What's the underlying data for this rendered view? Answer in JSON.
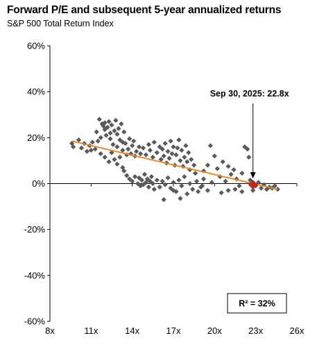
{
  "chart_data": {
    "type": "scatter",
    "title": "Forward P/E and subsequent 5-year annualized returns",
    "subtitle": "S&P 500 Total Return Index",
    "xlabel": "",
    "ylabel": "",
    "xlim": [
      8,
      26
    ],
    "ylim": [
      -60,
      60
    ],
    "x_ticks": [
      8,
      11,
      14,
      17,
      20,
      23,
      26
    ],
    "x_tick_labels": [
      "8x",
      "11x",
      "14x",
      "17x",
      "20x",
      "23x",
      "26x"
    ],
    "y_ticks": [
      60,
      40,
      20,
      0,
      -20,
      -40,
      -60
    ],
    "y_tick_labels": [
      "60%",
      "40%",
      "20%",
      "0%",
      "-20%",
      "-40%",
      "-60%"
    ],
    "grid": false,
    "colors": {
      "points": "#595959",
      "trend": "#E8892B",
      "current": "#C0281E"
    },
    "series": [
      {
        "points": [
          [
            9.6,
            17.5
          ],
          [
            9.7,
            16.0
          ],
          [
            10.1,
            19.0
          ],
          [
            10.3,
            15.5
          ],
          [
            10.5,
            17.5
          ],
          [
            10.7,
            14.0
          ],
          [
            10.9,
            16.5
          ],
          [
            11.0,
            14.5
          ],
          [
            11.1,
            18.0
          ],
          [
            11.3,
            15.0
          ],
          [
            11.4,
            22.5
          ],
          [
            11.5,
            18.5
          ],
          [
            11.6,
            28.0
          ],
          [
            11.7,
            20.0
          ],
          [
            11.8,
            26.0
          ],
          [
            11.9,
            25.0
          ],
          [
            12.0,
            23.5
          ],
          [
            12.0,
            26.5
          ],
          [
            12.1,
            21.0
          ],
          [
            12.2,
            24.5
          ],
          [
            12.3,
            27.0
          ],
          [
            12.4,
            22.0
          ],
          [
            12.4,
            19.5
          ],
          [
            12.5,
            25.5
          ],
          [
            12.6,
            17.0
          ],
          [
            12.7,
            23.0
          ],
          [
            12.8,
            27.5
          ],
          [
            12.9,
            21.5
          ],
          [
            12.9,
            16.0
          ],
          [
            13.0,
            24.0
          ],
          [
            13.1,
            19.0
          ],
          [
            13.2,
            26.0
          ],
          [
            13.3,
            18.0
          ],
          [
            13.3,
            14.5
          ],
          [
            13.4,
            22.5
          ],
          [
            13.5,
            17.5
          ],
          [
            13.6,
            12.5
          ],
          [
            13.7,
            15.0
          ],
          [
            13.8,
            19.5
          ],
          [
            13.9,
            13.0
          ],
          [
            14.0,
            16.5
          ],
          [
            14.1,
            18.5
          ],
          [
            14.2,
            12.0
          ],
          [
            11.7,
            13.0
          ],
          [
            12.0,
            11.5
          ],
          [
            12.3,
            9.5
          ],
          [
            12.5,
            13.5
          ],
          [
            12.7,
            10.5
          ],
          [
            12.9,
            8.5
          ],
          [
            13.1,
            11.5
          ],
          [
            13.3,
            7.0
          ],
          [
            13.4,
            5.5
          ],
          [
            13.6,
            3.5
          ],
          [
            13.8,
            2.0
          ],
          [
            14.0,
            1.0
          ],
          [
            14.2,
            3.0
          ],
          [
            14.4,
            0.0
          ],
          [
            14.5,
            2.5
          ],
          [
            14.6,
            -1.0
          ],
          [
            14.7,
            1.5
          ],
          [
            14.8,
            -0.5
          ],
          [
            14.9,
            4.0
          ],
          [
            15.0,
            0.5
          ],
          [
            15.1,
            2.0
          ],
          [
            15.2,
            -1.5
          ],
          [
            15.3,
            1.0
          ],
          [
            15.4,
            3.0
          ],
          [
            15.5,
            0.0
          ],
          [
            15.6,
            -2.5
          ],
          [
            15.8,
            1.5
          ],
          [
            14.3,
            14.0
          ],
          [
            14.5,
            16.0
          ],
          [
            14.6,
            13.0
          ],
          [
            14.8,
            15.5
          ],
          [
            15.0,
            12.5
          ],
          [
            15.2,
            17.0
          ],
          [
            15.3,
            14.5
          ],
          [
            15.5,
            11.5
          ],
          [
            15.6,
            18.0
          ],
          [
            15.8,
            13.5
          ],
          [
            16.0,
            16.0
          ],
          [
            16.1,
            10.5
          ],
          [
            16.2,
            15.0
          ],
          [
            16.3,
            12.0
          ],
          [
            16.4,
            17.5
          ],
          [
            16.5,
            9.0
          ],
          [
            16.6,
            14.0
          ],
          [
            16.7,
            11.0
          ],
          [
            16.8,
            18.5
          ],
          [
            16.9,
            13.0
          ],
          [
            17.0,
            16.0
          ],
          [
            17.1,
            8.0
          ],
          [
            17.2,
            12.5
          ],
          [
            17.3,
            15.5
          ],
          [
            17.4,
            19.0
          ],
          [
            17.5,
            10.0
          ],
          [
            17.6,
            14.5
          ],
          [
            17.7,
            7.5
          ],
          [
            17.8,
            11.5
          ],
          [
            17.9,
            16.5
          ],
          [
            18.0,
            9.5
          ],
          [
            18.1,
            13.5
          ],
          [
            18.2,
            6.0
          ],
          [
            18.3,
            10.5
          ],
          [
            18.5,
            8.0
          ],
          [
            18.6,
            4.5
          ],
          [
            16.0,
            -1.5
          ],
          [
            16.2,
            1.0
          ],
          [
            16.4,
            -0.5
          ],
          [
            16.6,
            2.5
          ],
          [
            16.8,
            -2.0
          ],
          [
            17.0,
            0.5
          ],
          [
            17.2,
            -3.5
          ],
          [
            17.4,
            1.5
          ],
          [
            17.6,
            -1.0
          ],
          [
            17.8,
            3.0
          ],
          [
            18.0,
            -4.5
          ],
          [
            18.2,
            0.0
          ],
          [
            18.4,
            -2.5
          ],
          [
            18.7,
            1.0
          ],
          [
            19.0,
            -1.5
          ],
          [
            19.2,
            2.0
          ],
          [
            19.5,
            -3.0
          ],
          [
            19.8,
            0.5
          ],
          [
            19.2,
            5.5
          ],
          [
            19.5,
            8.0
          ],
          [
            19.7,
            16.5
          ],
          [
            20.0,
            12.0
          ],
          [
            20.2,
            6.5
          ],
          [
            20.4,
            3.0
          ],
          [
            20.6,
            9.5
          ],
          [
            20.8,
            1.0
          ],
          [
            21.0,
            7.5
          ],
          [
            21.2,
            4.0
          ],
          [
            21.4,
            6.0
          ],
          [
            21.6,
            2.0
          ],
          [
            21.8,
            -1.0
          ],
          [
            22.0,
            4.5
          ],
          [
            22.2,
            16.0
          ],
          [
            22.4,
            15.0
          ],
          [
            22.5,
            11.5
          ],
          [
            22.6,
            1.5
          ],
          [
            22.8,
            -3.0
          ],
          [
            23.0,
            -1.0
          ],
          [
            23.2,
            0.5
          ],
          [
            23.4,
            -2.0
          ],
          [
            23.6,
            -0.5
          ],
          [
            23.8,
            -2.5
          ],
          [
            24.0,
            -1.5
          ],
          [
            24.2,
            -2.0
          ],
          [
            24.4,
            -1.0
          ],
          [
            24.6,
            -2.5
          ],
          [
            20.5,
            -4.0
          ],
          [
            21.0,
            -3.0
          ],
          [
            21.5,
            -2.5
          ],
          [
            22.0,
            -3.5
          ],
          [
            18.8,
            -3.5
          ],
          [
            19.1,
            -1.0
          ],
          [
            17.5,
            -6.5
          ],
          [
            17.0,
            -3.0
          ],
          [
            16.3,
            -7.0
          ]
        ]
      }
    ],
    "trendline": {
      "x": [
        9.6,
        24.6
      ],
      "y": [
        18.5,
        -2.5
      ]
    },
    "current": {
      "x": 22.8,
      "y": -0.5
    },
    "annotation": "Sep 30, 2025:  22.8x",
    "r_squared_label": "R² = 32%"
  }
}
